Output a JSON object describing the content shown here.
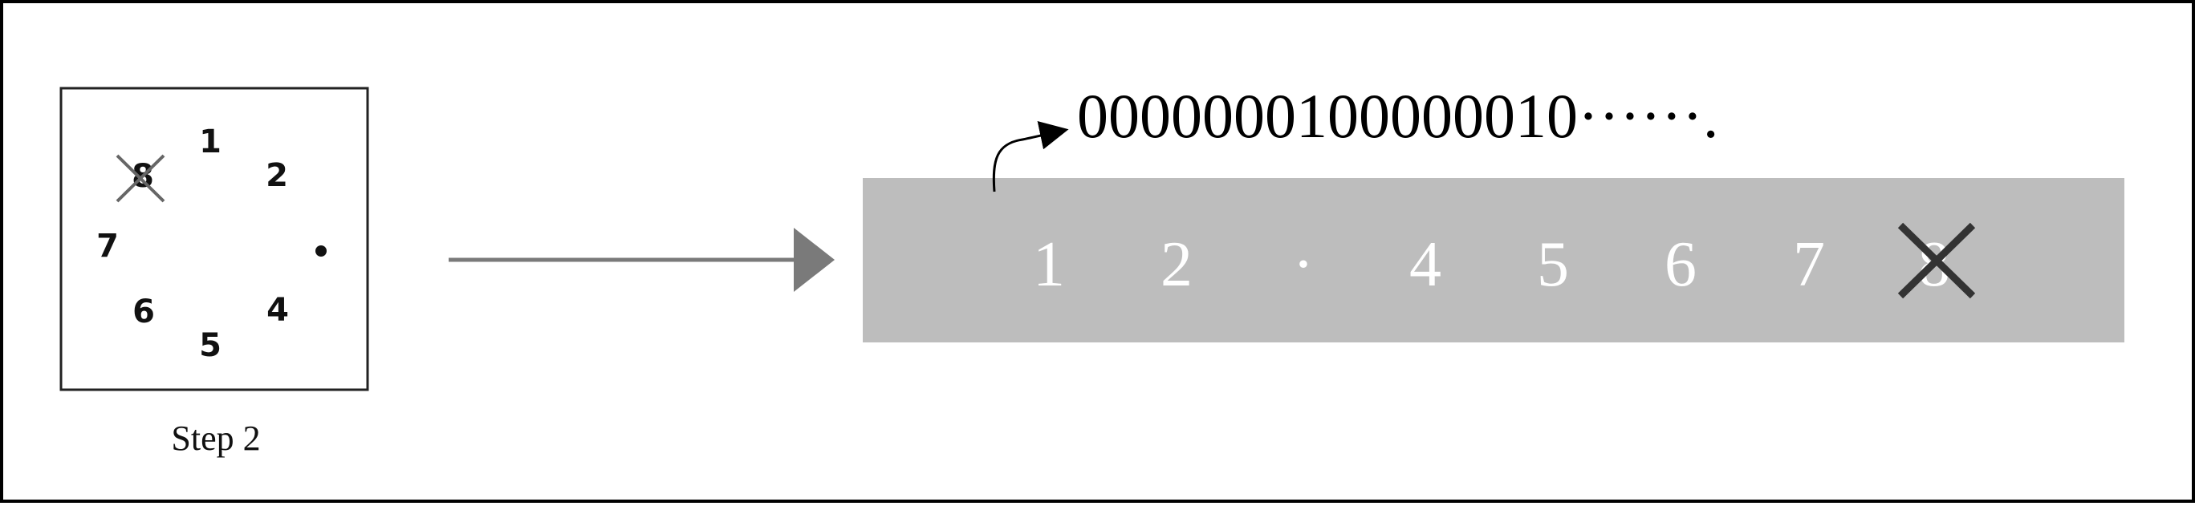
{
  "clock": {
    "numbers": [
      "1",
      "2",
      "4",
      "5",
      "6",
      "7",
      "8"
    ],
    "removed_number": "8",
    "step_label": "Step 2"
  },
  "bar": {
    "slots": [
      "1",
      "2",
      "·",
      "4",
      "5",
      "6",
      "7",
      "8"
    ],
    "removed_slot": "8",
    "background_color": "#bdbdbd"
  },
  "bits": {
    "value": "0000000100000010······."
  },
  "colors": {
    "arrow": "#7a7a7a",
    "cross": "#333333",
    "bar_text": "#ffffff"
  }
}
